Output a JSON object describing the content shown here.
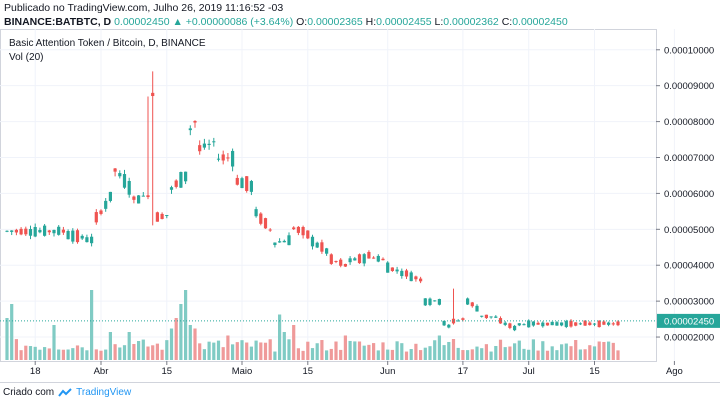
{
  "header": {
    "published": "Publicado no TradingView.com, Julho 26, 2019 11:16:52 -03",
    "symbol": "BINANCE:BATBTC, D",
    "last": "0.00002450",
    "change": "▲ +0.00000086 (+3.64%)",
    "o_label": "O:",
    "o_value": "0.00002365",
    "h_label": "H:",
    "h_value": "0.00002455",
    "l_label": "L:",
    "l_value": "0.00002362",
    "c_label": "C:",
    "c_value": "0.00002450"
  },
  "legend": {
    "title": "Basic Attention Token / Bitcoin, D, BINANCE",
    "vol": "Vol (20)"
  },
  "footer": {
    "created": "Criado com",
    "brand": "TradingView"
  },
  "colors": {
    "up": "#26a69a",
    "down": "#ef5350",
    "up_vol": "#80cbc4",
    "down_vol": "#ef9a9a",
    "price_line": "#26a69a",
    "price_badge": "#26a69a"
  },
  "chart_data": {
    "type": "candlestick",
    "y_axis_ticks": [
      "0.00010000",
      "0.00009000",
      "0.00008000",
      "0.00007000",
      "0.00006000",
      "0.00005000",
      "0.00004000",
      "0.00003000",
      "0.00002000"
    ],
    "ylim": [
      1.5e-05,
      0.000103
    ],
    "last_price_label": "0.00002450",
    "last_price": 2.45e-05,
    "x_ticks": [
      {
        "label": "18",
        "day": 0
      },
      {
        "label": "Abr",
        "day": 14
      },
      {
        "label": "15",
        "day": 28
      },
      {
        "label": "Maio",
        "day": 44
      },
      {
        "label": "15",
        "day": 58
      },
      {
        "label": "Jun",
        "day": 75
      },
      {
        "label": "17",
        "day": 91
      },
      {
        "label": "Jul",
        "day": 105
      },
      {
        "label": "15",
        "day": 119
      },
      {
        "label": "Ago",
        "day": 136
      }
    ],
    "first_day_index": -6,
    "days": 131,
    "anchors": [
      [
        0,
        4.65e-05,
        4.95e-05
      ],
      [
        6,
        4.95e-05,
        4.9e-05
      ],
      [
        12,
        4.7e-05,
        5.1e-05
      ],
      [
        16,
        5.9e-05,
        6.8e-05
      ],
      [
        20,
        6.2e-05,
        5.8e-05
      ],
      [
        24,
        5.95e-05,
        5.3e-05
      ],
      [
        28,
        5.4e-05,
        6e-05
      ],
      [
        32,
        6.5e-05,
        7.6e-05
      ],
      [
        34,
        8e-05,
        7.2e-05
      ],
      [
        38,
        7.4e-05,
        7e-05
      ],
      [
        42,
        7e-05,
        6.4e-05
      ],
      [
        46,
        6.2e-05,
        5.6e-05
      ],
      [
        50,
        5e-05,
        4.6e-05
      ],
      [
        54,
        4.7e-05,
        5.1e-05
      ],
      [
        58,
        4.85e-05,
        4.75e-05
      ],
      [
        62,
        4.4e-05,
        4.2e-05
      ],
      [
        66,
        4e-05,
        4.1e-05
      ],
      [
        70,
        4.2e-05,
        4.3e-05
      ],
      [
        74,
        4.15e-05,
        4e-05
      ],
      [
        78,
        3.8e-05,
        3.8e-05
      ],
      [
        82,
        3.6e-05,
        3e-05
      ],
      [
        86,
        3e-05,
        2.5e-05
      ],
      [
        88,
        2.3e-05,
        2.4e-05
      ],
      [
        91,
        2.5e-05,
        3.1e-05
      ],
      [
        94,
        2.8e-05,
        2.6e-05
      ],
      [
        98,
        2.55e-05,
        2.5e-05
      ],
      [
        102,
        2.25e-05,
        2.35e-05
      ],
      [
        106,
        2.37e-05,
        2.45e-05
      ]
    ],
    "spikes": [
      [
        25,
        9.4e-05,
        8.8e-05
      ],
      [
        24,
        8.7e-05,
        null
      ],
      [
        89,
        3.35e-05,
        null
      ],
      [
        92,
        3.05e-05,
        null
      ]
    ],
    "volume_spikes": [
      [
        -6,
        0.6
      ],
      [
        -5,
        0.8
      ],
      [
        4,
        0.5
      ],
      [
        12,
        1.0
      ],
      [
        16,
        0.4
      ],
      [
        20,
        0.4
      ],
      [
        29,
        0.45
      ],
      [
        30,
        0.6
      ],
      [
        31,
        0.8
      ],
      [
        32,
        1.0
      ],
      [
        33,
        0.5
      ],
      [
        34,
        0.45
      ],
      [
        41,
        0.35
      ],
      [
        52,
        0.65
      ],
      [
        53,
        0.4
      ],
      [
        55,
        0.5
      ],
      [
        66,
        0.35
      ],
      [
        86,
        0.35
      ],
      [
        89,
        0.3
      ],
      [
        98,
        0.2
      ]
    ]
  }
}
